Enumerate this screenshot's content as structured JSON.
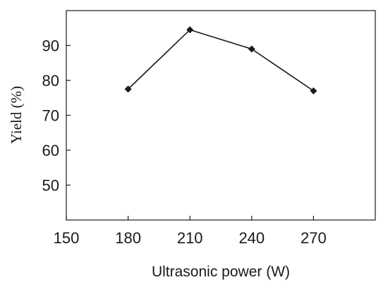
{
  "chart_data": {
    "type": "line",
    "title": "",
    "xlabel": "Ultrasonic power (W)",
    "ylabel": "Yield (%)",
    "xlim": [
      150,
      300
    ],
    "ylim": [
      40,
      100
    ],
    "xticks": [
      150,
      180,
      210,
      240,
      270
    ],
    "yticks": [
      50,
      60,
      70,
      80,
      90
    ],
    "grid": false,
    "legend": "none",
    "series": [
      {
        "x": [
          180,
          210,
          240,
          270
        ],
        "y": [
          77.5,
          94.5,
          89.0,
          77.0
        ],
        "marker": "diamond",
        "color": "#1a1a1a"
      }
    ]
  }
}
